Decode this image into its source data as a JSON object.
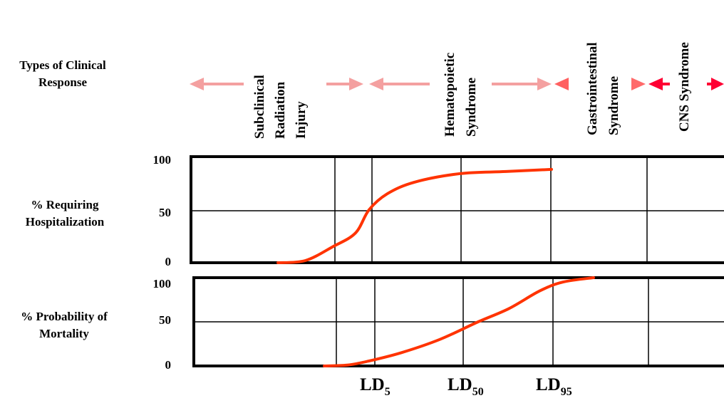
{
  "row_labels": {
    "clinical_line1": "Types of Clinical",
    "clinical_line2": "Response",
    "hosp_line1": "% Requiring",
    "hosp_line2": "Hospitalization",
    "mort_line1": "% Probability of",
    "mort_line2": "Mortality"
  },
  "zones": {
    "subclinical": [
      "Subclinical",
      "Radiation",
      "Injury"
    ],
    "hematopoietic": [
      "Hematopoietic",
      "Syndrome"
    ],
    "gastrointestinal": [
      "Gastrointestinal",
      "Syndrome"
    ],
    "cns": [
      "CNS Syndrome"
    ]
  },
  "y_ticks": {
    "hosp": [
      "100",
      "50",
      "0"
    ],
    "mort": [
      "100",
      "50",
      "0"
    ]
  },
  "ld_labels": [
    {
      "main": "LD",
      "sub": "5"
    },
    {
      "main": "LD",
      "sub": "50"
    },
    {
      "main": "LD",
      "sub": "95"
    }
  ],
  "colors": {
    "arrow": "#f4a0a0",
    "arrow_strong": "#ff0033",
    "curve": "#ff3300",
    "grid": "#000000"
  },
  "chart_data": [
    {
      "type": "line",
      "name": "% Requiring Hospitalization",
      "ylim": [
        0,
        100
      ],
      "yticks": [
        0,
        50,
        100
      ],
      "series": [
        {
          "points": [
            [
              0,
              0
            ],
            [
              0.3,
              2
            ],
            [
              0.6,
              15
            ],
            [
              0.85,
              28
            ],
            [
              1.0,
              50
            ],
            [
              1.2,
              65
            ],
            [
              1.5,
              76
            ],
            [
              2.0,
              84
            ],
            [
              2.5,
              86
            ],
            [
              3.0,
              88
            ]
          ]
        }
      ]
    },
    {
      "type": "line",
      "name": "% Probability of Mortality",
      "ylim": [
        0,
        100
      ],
      "yticks": [
        0,
        50,
        100
      ],
      "xticks": [
        "LD5",
        "LD50",
        "LD95"
      ],
      "series": [
        {
          "points": [
            [
              0,
              0
            ],
            [
              0.3,
              1
            ],
            [
              0.55,
              5
            ],
            [
              1.0,
              15
            ],
            [
              1.5,
              30
            ],
            [
              2.0,
              50
            ],
            [
              2.4,
              65
            ],
            [
              2.8,
              85
            ],
            [
              3.1,
              95
            ],
            [
              3.5,
              100
            ]
          ]
        }
      ]
    }
  ]
}
